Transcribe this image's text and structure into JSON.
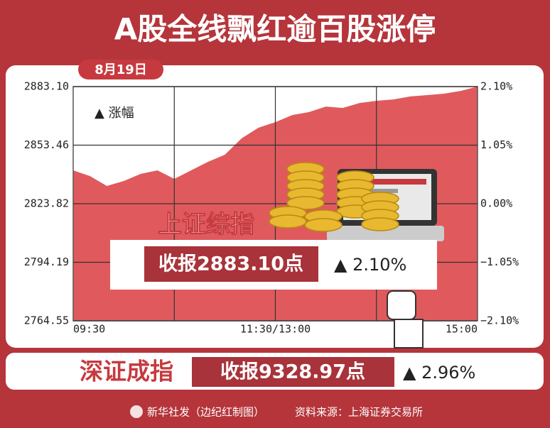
{
  "title": "A股全线飘红逾百股涨停",
  "date": "8月19日",
  "chart_data": {
    "type": "area",
    "legend_text": "▲ 涨幅",
    "color": "#e05a5d",
    "x": [
      0,
      10,
      20,
      30,
      40,
      50,
      60,
      70,
      80,
      90,
      100,
      110,
      120,
      130,
      140,
      150,
      160,
      170,
      180,
      190,
      200,
      210,
      220,
      230,
      240
    ],
    "values": [
      2840.7,
      2837.8,
      2832.8,
      2835.3,
      2838.9,
      2840.7,
      2836.4,
      2840.7,
      2845.0,
      2848.6,
      2856.9,
      2862.3,
      2865.1,
      2868.7,
      2870.2,
      2873.0,
      2872.3,
      2874.8,
      2875.9,
      2876.6,
      2878.1,
      2878.8,
      2879.5,
      2880.9,
      2883.1
    ],
    "xlim": [
      0,
      240
    ],
    "xticks": [
      {
        "value": 0,
        "label": "09:30"
      },
      {
        "value": 120,
        "label": "11:30/13:00"
      },
      {
        "value": 240,
        "label": "15:00"
      }
    ],
    "xgrid": [
      60,
      120,
      180
    ],
    "ylim": [
      2764.55,
      2883.1
    ],
    "yticks": [
      {
        "value": 2883.1,
        "label": "2883.10"
      },
      {
        "value": 2853.46,
        "label": "2853.46"
      },
      {
        "value": 2823.82,
        "label": "2823.82"
      },
      {
        "value": 2794.19,
        "label": "2794.19"
      },
      {
        "value": 2764.55,
        "label": "2764.55"
      }
    ],
    "y2lim": [
      -2.1,
      2.1
    ],
    "y2ticks": [
      {
        "value": 2.1,
        "label": "2.10%"
      },
      {
        "value": 1.05,
        "label": "1.05%"
      },
      {
        "value": 0,
        "label": "0.00%"
      },
      {
        "value": -1.05,
        "label": "−1.05%"
      },
      {
        "value": -2.1,
        "label": "−2.10%"
      }
    ],
    "grid": true
  },
  "shanghai": {
    "name": "上证综指",
    "close": "收报2883.10点",
    "change": "▲ 2.10%"
  },
  "shenzhen": {
    "name": "深证成指",
    "close": "收报9328.97点",
    "change": "▲ 2.96%"
  },
  "footer": {
    "credit": "新华社发（边纪红制图）",
    "source": "资料来源：上海证券交易所"
  }
}
